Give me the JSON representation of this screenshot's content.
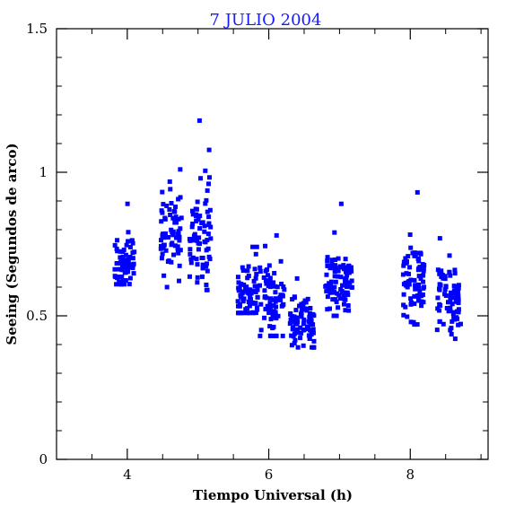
{
  "chart_data": {
    "type": "scatter",
    "title": "7 JULIO 2004",
    "xlabel": "Tiempo Universal (h)",
    "ylabel": "Seeing (Segundos de arco)",
    "xlim": [
      3.0,
      9.1
    ],
    "ylim": [
      0,
      1.5
    ],
    "x_major_ticks": [
      4,
      6,
      8
    ],
    "x_minor_ticks": [
      3.5,
      4.5,
      5,
      5.5,
      6.5,
      7,
      7.5,
      8.5,
      9
    ],
    "y_major_ticks": [
      0,
      0.5,
      1,
      1.5
    ],
    "y_tick_labels": [
      "0",
      "0.5",
      "1",
      "1.5"
    ],
    "x_tick_labels": [
      "4",
      "6",
      "8"
    ],
    "y_minor_step": 0.1,
    "grid": false,
    "marker": "square",
    "color": "#0000ff",
    "clusters": [
      {
        "x_range": [
          3.82,
          4.1
        ],
        "y_mean": 0.69,
        "y_sd": 0.05,
        "n": 75,
        "ymin": 0.61,
        "ymax": 0.89
      },
      {
        "x_range": [
          4.47,
          4.78
        ],
        "y_mean": 0.78,
        "y_sd": 0.075,
        "n": 70,
        "ymin": 0.6,
        "ymax": 1.01
      },
      {
        "x_range": [
          4.88,
          5.18
        ],
        "y_mean": 0.79,
        "y_sd": 0.1,
        "n": 75,
        "ymin": 0.59,
        "ymax": 1.18
      },
      {
        "x_range": [
          5.56,
          5.85
        ],
        "y_mean": 0.58,
        "y_sd": 0.045,
        "n": 70,
        "ymin": 0.51,
        "ymax": 0.74
      },
      {
        "x_range": [
          5.87,
          6.22
        ],
        "y_mean": 0.55,
        "y_sd": 0.06,
        "n": 75,
        "ymin": 0.43,
        "ymax": 0.78
      },
      {
        "x_range": [
          6.3,
          6.65
        ],
        "y_mean": 0.47,
        "y_sd": 0.04,
        "n": 85,
        "ymin": 0.39,
        "ymax": 0.63
      },
      {
        "x_range": [
          6.8,
          7.18
        ],
        "y_mean": 0.61,
        "y_sd": 0.055,
        "n": 95,
        "ymin": 0.5,
        "ymax": 0.89
      },
      {
        "x_range": [
          7.9,
          8.2
        ],
        "y_mean": 0.63,
        "y_sd": 0.06,
        "n": 75,
        "ymin": 0.47,
        "ymax": 0.93
      },
      {
        "x_range": [
          8.38,
          8.72
        ],
        "y_mean": 0.56,
        "y_sd": 0.06,
        "n": 80,
        "ymin": 0.42,
        "ymax": 0.77
      }
    ]
  }
}
